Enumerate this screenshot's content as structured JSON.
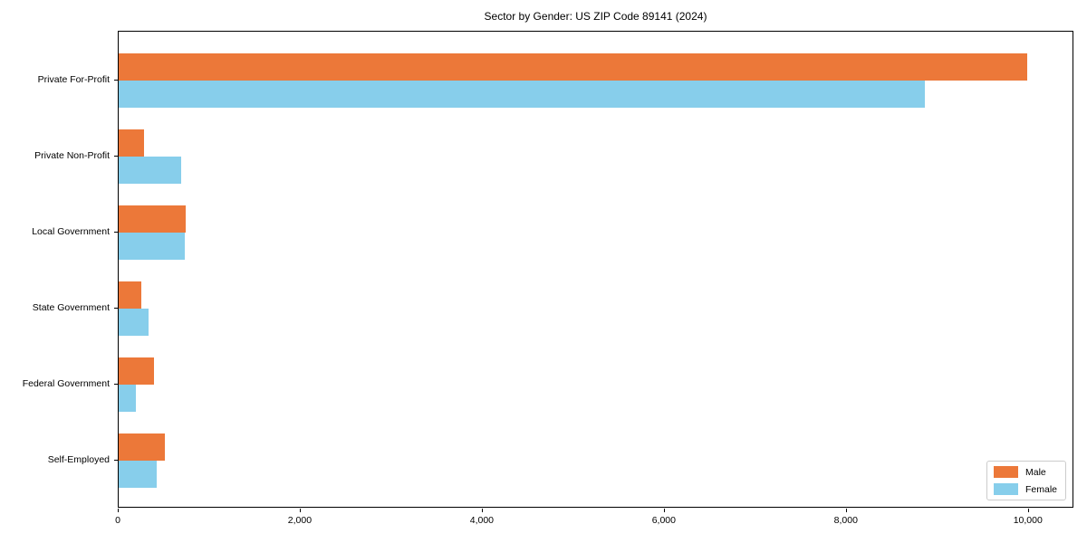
{
  "chart_data": {
    "type": "bar",
    "orientation": "horizontal",
    "title": "Sector by Gender: US ZIP Code 89141 (2024)",
    "categories": [
      "Private For-Profit",
      "Private Non-Profit",
      "Local Government",
      "State Government",
      "Federal Government",
      "Self-Employed"
    ],
    "series": [
      {
        "name": "Male",
        "color": "#ec7839",
        "values": [
          10000,
          280,
          740,
          250,
          390,
          505
        ]
      },
      {
        "name": "Female",
        "color": "#87ceeb",
        "values": [
          8870,
          690,
          725,
          325,
          190,
          415
        ]
      }
    ],
    "xlabel": "",
    "ylabel": "",
    "xlim": [
      0,
      10500
    ],
    "x_ticks": [
      0,
      2000,
      4000,
      6000,
      8000,
      10000
    ],
    "x_tick_labels": [
      "0",
      "2,000",
      "4,000",
      "6,000",
      "8,000",
      "10,000"
    ],
    "grid": false,
    "legend": {
      "position": "lower right",
      "entries": [
        {
          "label": "Male",
          "color": "#ec7839"
        },
        {
          "label": "Female",
          "color": "#87ceeb"
        }
      ]
    }
  }
}
